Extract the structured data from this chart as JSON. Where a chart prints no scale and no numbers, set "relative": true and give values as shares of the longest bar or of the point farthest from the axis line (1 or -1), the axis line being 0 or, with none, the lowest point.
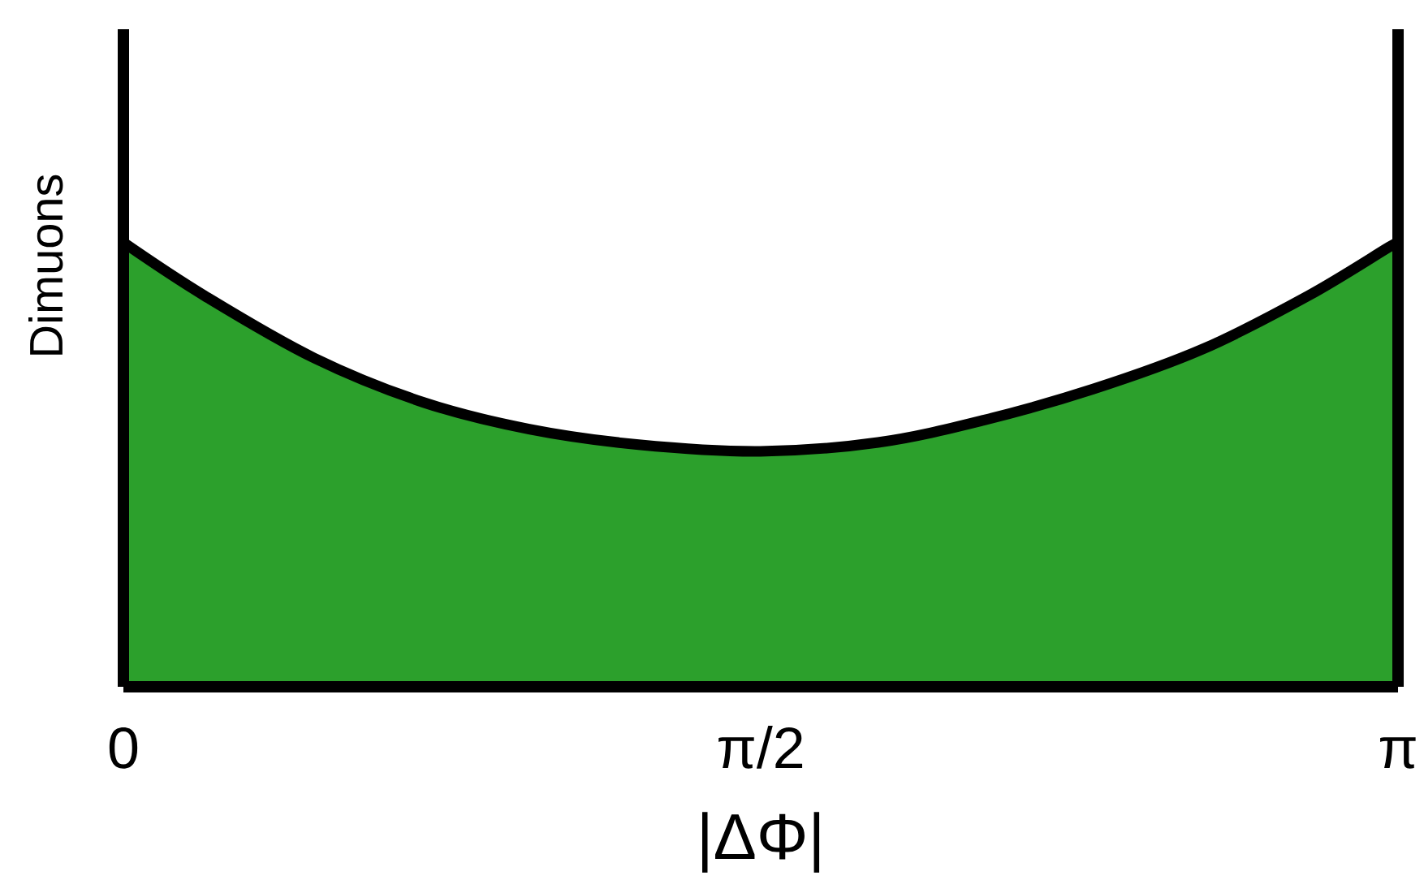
{
  "chart_data": {
    "type": "area",
    "xlabel": "|ΔΦ|",
    "ylabel": "Dimuons",
    "relative": true,
    "x": [
      0,
      0.2,
      0.47,
      0.74,
      1.0,
      1.27,
      1.57,
      1.86,
      2.12,
      2.39,
      2.66,
      2.92,
      3.12,
      3.14159
    ],
    "values": [
      1.0,
      0.88,
      0.74,
      0.64,
      0.58,
      0.545,
      0.53,
      0.55,
      0.6,
      0.67,
      0.76,
      0.88,
      0.99,
      1.0
    ],
    "color": "#2ca02c",
    "xlim": [
      0,
      3.14159
    ],
    "xticks": [
      {
        "value": 0,
        "label": "0"
      },
      {
        "value": 1.5708,
        "label": "π/2"
      },
      {
        "value": 3.14159,
        "label": "π"
      }
    ],
    "tick_labels": "x"
  }
}
